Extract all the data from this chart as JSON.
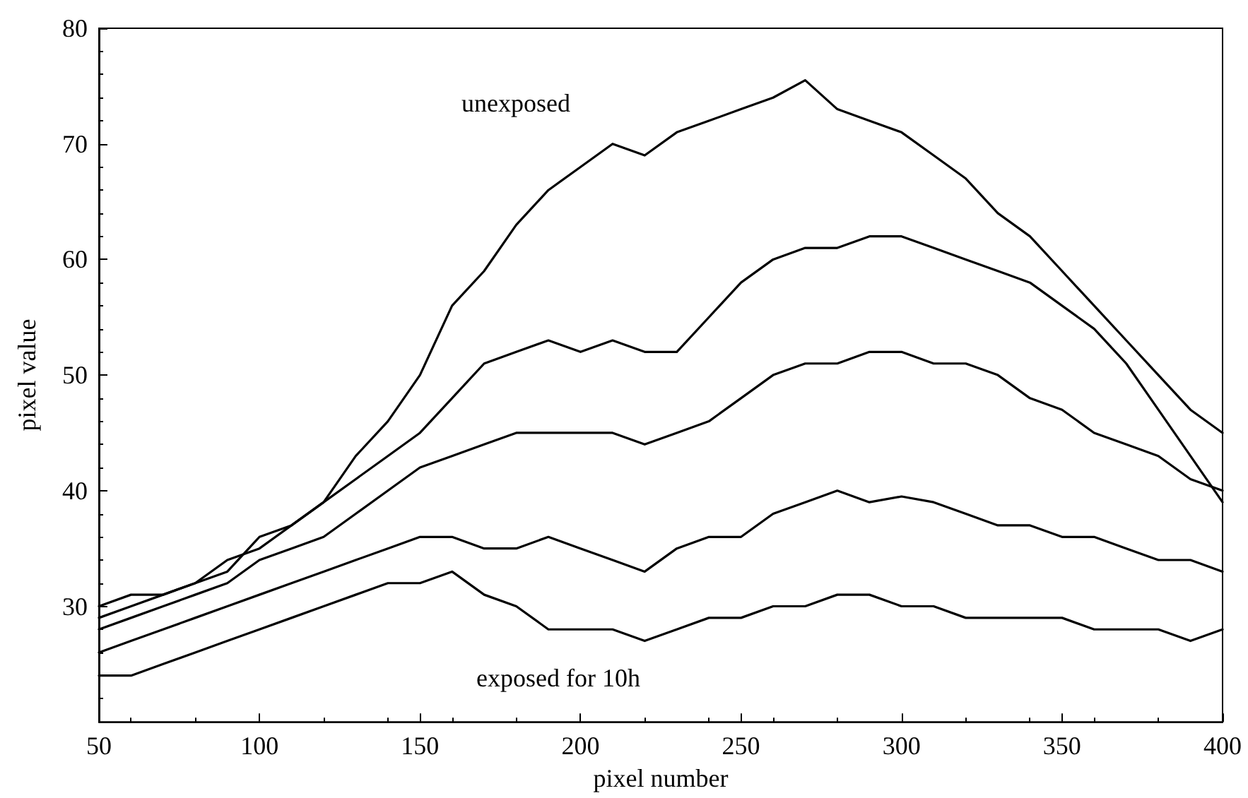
{
  "chart_data": {
    "type": "line",
    "xlabel": "pixel number",
    "ylabel": "pixel value",
    "x": [
      50,
      60,
      70,
      80,
      90,
      100,
      110,
      120,
      130,
      140,
      150,
      160,
      170,
      180,
      190,
      200,
      210,
      220,
      230,
      240,
      250,
      260,
      270,
      280,
      290,
      300,
      310,
      320,
      330,
      340,
      350,
      360,
      370,
      380,
      390,
      400
    ],
    "series": [
      {
        "color": "#000000",
        "values": [
          30,
          31,
          31,
          32,
          34,
          35,
          37,
          39,
          43,
          46,
          50,
          56,
          59,
          63,
          66,
          68,
          70,
          69,
          71,
          72,
          73,
          74,
          75.5,
          73,
          72,
          71,
          69,
          67,
          64,
          62,
          59,
          56,
          53,
          50,
          47,
          45
        ]
      },
      {
        "color": "#000000",
        "values": [
          29,
          30,
          31,
          32,
          33,
          36,
          37,
          39,
          41,
          43,
          45,
          48,
          51,
          52,
          53,
          52,
          53,
          52,
          52,
          55,
          58,
          60,
          61,
          61,
          62,
          62,
          61,
          60,
          59,
          58,
          56,
          54,
          51,
          47,
          43,
          39
        ]
      },
      {
        "color": "#000000",
        "values": [
          28,
          29,
          30,
          31,
          32,
          34,
          35,
          36,
          38,
          40,
          42,
          43,
          44,
          45,
          45,
          45,
          45,
          44,
          45,
          46,
          48,
          50,
          51,
          51,
          52,
          52,
          51,
          51,
          50,
          48,
          47,
          45,
          44,
          43,
          41,
          40
        ]
      },
      {
        "color": "#000000",
        "values": [
          26,
          27,
          28,
          29,
          30,
          31,
          32,
          33,
          34,
          35,
          36,
          36,
          35,
          35,
          36,
          35,
          34,
          33,
          35,
          36,
          36,
          38,
          39,
          40,
          39,
          39.5,
          39,
          38,
          37,
          37,
          36,
          36,
          35,
          34,
          34,
          33
        ]
      },
      {
        "color": "#000000",
        "values": [
          24,
          24,
          25,
          26,
          27,
          28,
          29,
          30,
          31,
          32,
          32,
          33,
          31,
          30,
          28,
          28,
          28,
          27,
          28,
          29,
          29,
          30,
          30,
          31,
          31,
          30,
          30,
          29,
          29,
          29,
          29,
          28,
          28,
          28,
          27,
          28
        ]
      }
    ],
    "annotations": [
      "unexposed",
      "exposed for 10h"
    ],
    "xlim": [
      50,
      400
    ],
    "xticks": [
      50,
      100,
      150,
      200,
      250,
      300,
      350,
      400
    ],
    "ylim": [
      20,
      80
    ],
    "yticks": [
      30,
      40,
      50,
      60,
      70,
      80
    ],
    "marker": "none",
    "line_style": "solid"
  }
}
